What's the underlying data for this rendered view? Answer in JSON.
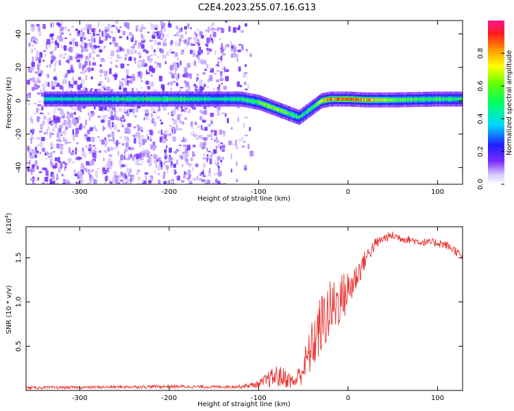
{
  "title": "C2E4.2023.255.07.16.G13",
  "colors": {
    "snr_line": "#e8322e",
    "ridge_low": "#1f1fff",
    "ridge_mid": "#00d8ff",
    "ridge_high": "#ff2020",
    "noise": "#7a2bff",
    "frame": "#000000"
  },
  "chart_data": [
    {
      "type": "heatmap",
      "xlabel": "Height of straight line (km)",
      "ylabel": "Frequency (Hz)",
      "xlim": [
        -360,
        128
      ],
      "ylim": [
        -50,
        48
      ],
      "x_ticks": [
        -300,
        -200,
        -100,
        0,
        100
      ],
      "x_tick_labels": [
        "-300",
        "-200",
        "-100",
        "0",
        "100"
      ],
      "y_ticks": [
        -40,
        -20,
        0,
        20,
        40
      ],
      "y_tick_labels": [
        "-40",
        "-20",
        "0",
        "20",
        "40"
      ],
      "grid": false,
      "colorbar": {
        "label": "Normalized spectral amplitude",
        "range": [
          0,
          1
        ],
        "ticks": [
          0.0,
          0.2,
          0.4,
          0.6,
          0.8
        ],
        "tick_labels": [
          "0.0",
          "0.2",
          "0.4",
          "0.6",
          "0.8"
        ],
        "colormap": "rainbow"
      },
      "ridge": {
        "description_points_x": [
          -340,
          -300,
          -250,
          -200,
          -150,
          -120,
          -100,
          -90,
          -80,
          -70,
          -60,
          -55,
          -50,
          -40,
          -30,
          -20,
          -10,
          0,
          20,
          50,
          100,
          128
        ],
        "frequency_hz": [
          1,
          1,
          1,
          1,
          1,
          1,
          -1,
          -3,
          -5,
          -7,
          -9,
          -10,
          -8,
          -4,
          0,
          1,
          1,
          1,
          0.5,
          0.5,
          1,
          1
        ],
        "amplitude": [
          0.45,
          0.45,
          0.5,
          0.55,
          0.45,
          0.5,
          0.6,
          0.65,
          0.65,
          0.6,
          0.55,
          0.5,
          0.5,
          0.55,
          0.75,
          0.85,
          0.85,
          0.9,
          0.8,
          0.6,
          0.55,
          0.5
        ]
      },
      "noise_region_x": [
        -360,
        -140
      ]
    },
    {
      "type": "line",
      "xlabel": "Height of straight line (km)",
      "ylabel": "SNR (10 * v/v)",
      "y_multiplier": "(x10",
      "y_multiplier_exp": "4",
      "y_multiplier_close": ")",
      "xlim": [
        -360,
        128
      ],
      "ylim": [
        0,
        18500
      ],
      "x_ticks": [
        -300,
        -200,
        -100,
        0,
        100
      ],
      "x_tick_labels": [
        "-300",
        "-200",
        "-100",
        "0",
        "100"
      ],
      "y_ticks": [
        5000,
        10000,
        15000
      ],
      "y_tick_labels": [
        "0.5",
        "1.0",
        "1.5"
      ],
      "grid": false,
      "series": [
        {
          "x": [
            -360,
            -300,
            -250,
            -200,
            -150,
            -120,
            -100,
            -90,
            -80,
            -70,
            -60,
            -50,
            -40,
            -30,
            -20,
            -10,
            0,
            10,
            20,
            30,
            40,
            50,
            60,
            70,
            80,
            90,
            100,
            110,
            120,
            128
          ],
          "y": [
            300,
            350,
            400,
            450,
            400,
            450,
            700,
            1200,
            1600,
            1400,
            900,
            2500,
            5000,
            7500,
            9000,
            10200,
            11200,
            13000,
            15000,
            16500,
            17200,
            17500,
            17200,
            17000,
            16800,
            16700,
            16700,
            16400,
            15800,
            15000
          ],
          "spread": [
            150,
            150,
            150,
            200,
            150,
            200,
            400,
            900,
            1300,
            1100,
            700,
            1800,
            3000,
            3500,
            3500,
            3000,
            2500,
            1600,
            1000,
            700,
            500,
            500,
            500,
            450,
            450,
            450,
            500,
            500,
            500,
            400
          ]
        }
      ]
    }
  ]
}
